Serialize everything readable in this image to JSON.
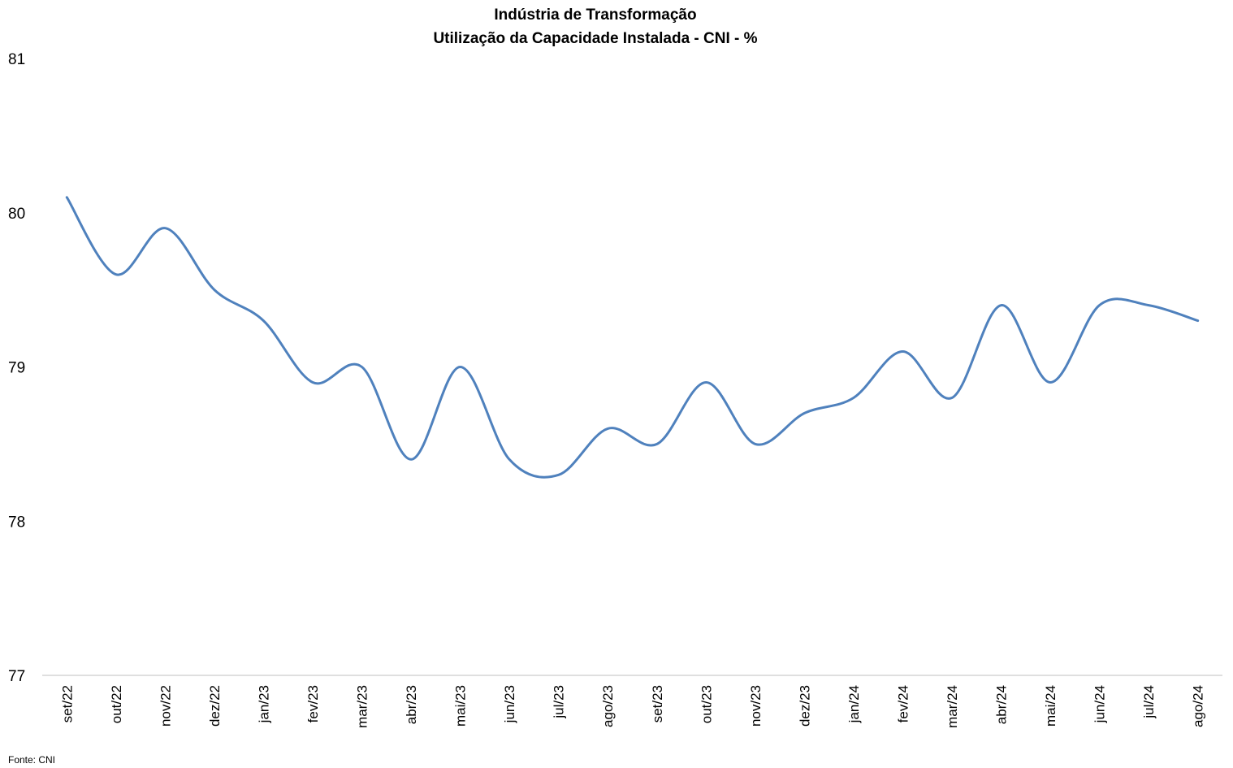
{
  "chart_data": {
    "type": "line",
    "title": "Indústria de Transformação",
    "subtitle": "Utilização da Capacidade Instalada - CNI - %",
    "categories": [
      "set/22",
      "out/22",
      "nov/22",
      "dez/22",
      "jan/23",
      "fev/23",
      "mar/23",
      "abr/23",
      "mai/23",
      "jun/23",
      "jul/23",
      "ago/23",
      "set/23",
      "out/23",
      "nov/23",
      "dez/23",
      "jan/24",
      "fev/24",
      "mar/24",
      "abr/24",
      "mai/24",
      "jun/24",
      "jul/24",
      "ago/24"
    ],
    "series": [
      {
        "values": [
          80.1,
          79.6,
          79.9,
          79.5,
          79.3,
          78.9,
          79.0,
          78.4,
          79.0,
          78.4,
          78.3,
          78.6,
          78.5,
          78.9,
          78.5,
          78.7,
          78.8,
          79.1,
          78.8,
          79.4,
          78.9,
          79.4,
          79.4,
          79.3
        ]
      }
    ],
    "ylim": [
      77,
      81
    ],
    "yticks": [
      77,
      78,
      79,
      80,
      81
    ],
    "xlabel": "",
    "ylabel": "",
    "grid": false,
    "legend": "none",
    "line_color": "#4f81bd",
    "axis_color": "#bfbfbf"
  },
  "source": "Fonte: CNI"
}
